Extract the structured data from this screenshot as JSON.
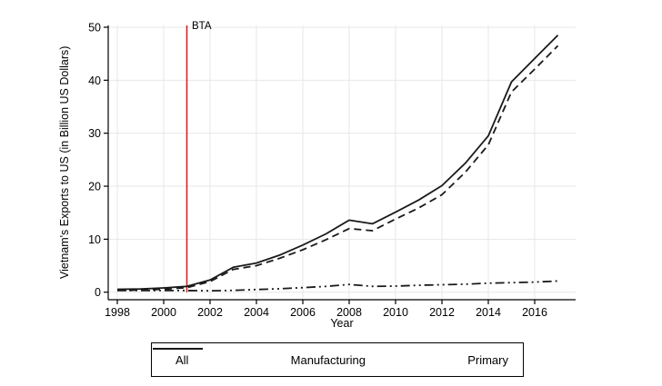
{
  "figure": {
    "background": "#ffffff"
  },
  "colors": {
    "series_line": "#1a1a1a",
    "bta_line": "#e02020",
    "gridline": "#e7e7e7",
    "axis": "#000000"
  },
  "chart_data": {
    "type": "line",
    "title": "",
    "xlabel": "Year",
    "ylabel": "Vietnam's Exports to US (in Billion US Dollars)",
    "xlim": [
      1997.6,
      2017.75
    ],
    "ylim": [
      0,
      50
    ],
    "x_ticks": [
      1998,
      2000,
      2002,
      2004,
      2006,
      2008,
      2010,
      2012,
      2014,
      2016
    ],
    "y_ticks": [
      0,
      10,
      20,
      30,
      40,
      50
    ],
    "grid": true,
    "legend_position": "bottom",
    "x": [
      1998,
      1999,
      2000,
      2001,
      2002,
      2003,
      2004,
      2005,
      2006,
      2007,
      2008,
      2009,
      2010,
      2011,
      2012,
      2013,
      2014,
      2015,
      2016,
      2017
    ],
    "series": [
      {
        "name": "All",
        "style": "solid",
        "values": [
          0.55,
          0.6,
          0.8,
          1.1,
          2.3,
          4.7,
          5.5,
          7.0,
          8.9,
          11.0,
          13.6,
          12.9,
          15.1,
          17.4,
          20.1,
          24.3,
          29.5,
          39.7,
          44.1,
          48.5
        ]
      },
      {
        "name": "Manufacturing",
        "style": "dashed",
        "values": [
          0.35,
          0.4,
          0.55,
          0.85,
          2.0,
          4.3,
          5.0,
          6.4,
          8.0,
          9.9,
          12.0,
          11.6,
          13.8,
          15.9,
          18.4,
          22.6,
          27.8,
          37.8,
          42.1,
          46.5
        ]
      },
      {
        "name": "Primary",
        "style": "dashdotdot",
        "values": [
          0.3,
          0.3,
          0.3,
          0.3,
          0.25,
          0.35,
          0.5,
          0.65,
          0.85,
          1.1,
          1.45,
          1.1,
          1.15,
          1.3,
          1.4,
          1.5,
          1.7,
          1.8,
          1.9,
          2.1
        ]
      }
    ],
    "annotations": [
      {
        "type": "vline",
        "x": 2001,
        "label": "BTA",
        "color": "#e02020"
      }
    ]
  }
}
